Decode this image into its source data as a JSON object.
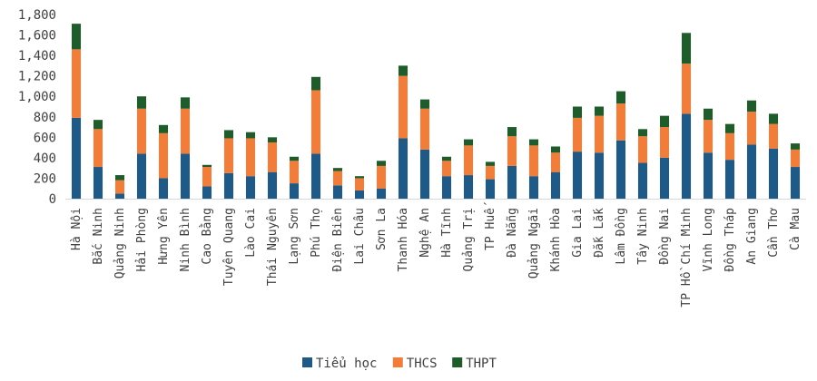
{
  "chart_data": {
    "type": "bar",
    "stacked": true,
    "categories": [
      "Hà Nội",
      "Bắc Ninh",
      "Quảng Ninh",
      "Hải Phòng",
      "Hưng Yên",
      "Ninh Bình",
      "Cao Bằng",
      "Tuyên Quang",
      "Lào Cai",
      "Thái Nguyên",
      "Lạng Sơn",
      "Phú Thọ",
      "Điện Biên",
      "Lai Châu",
      "Sơn La",
      "Thanh Hóa",
      "Nghệ An",
      "Hà Tĩnh",
      "Quảng Trị",
      "TP Huế",
      "Đà Nẵng",
      "Quảng Ngãi",
      "Khánh Hòa",
      "Gia Lai",
      "Đắk Lắk",
      "Lâm Đồng",
      "Tây Ninh",
      "Đồng Nai",
      "TP Hồ Chí Minh",
      "Vĩnh Long",
      "Đồng Tháp",
      "An Giang",
      "Cần Thơ",
      "Cà Mau"
    ],
    "series": [
      {
        "name": "Tiểu học",
        "color": "#1f5a87",
        "values": [
          790,
          310,
          50,
          440,
          200,
          440,
          120,
          250,
          220,
          260,
          150,
          440,
          130,
          80,
          100,
          590,
          480,
          220,
          230,
          190,
          320,
          220,
          260,
          460,
          450,
          570,
          350,
          400,
          830,
          450,
          380,
          530,
          490,
          310
        ]
      },
      {
        "name": "THCS",
        "color": "#f07e3a",
        "values": [
          670,
          370,
          130,
          440,
          440,
          440,
          190,
          340,
          370,
          290,
          220,
          620,
          140,
          120,
          220,
          610,
          400,
          150,
          290,
          130,
          290,
          300,
          190,
          330,
          360,
          360,
          260,
          300,
          490,
          320,
          260,
          320,
          240,
          170
        ]
      },
      {
        "name": "THPT",
        "color": "#1e5c2c",
        "values": [
          250,
          90,
          50,
          120,
          80,
          110,
          20,
          80,
          60,
          50,
          40,
          130,
          30,
          20,
          50,
          100,
          90,
          40,
          60,
          40,
          90,
          60,
          60,
          110,
          90,
          120,
          70,
          110,
          300,
          110,
          90,
          110,
          100,
          60
        ]
      }
    ],
    "yticks": [
      "0",
      "200",
      "400",
      "600",
      "800",
      "1,000",
      "1,200",
      "1,400",
      "1,600",
      "1,800"
    ],
    "ylim": [
      0,
      1800
    ],
    "legend_position": "bottom",
    "grid": false
  }
}
